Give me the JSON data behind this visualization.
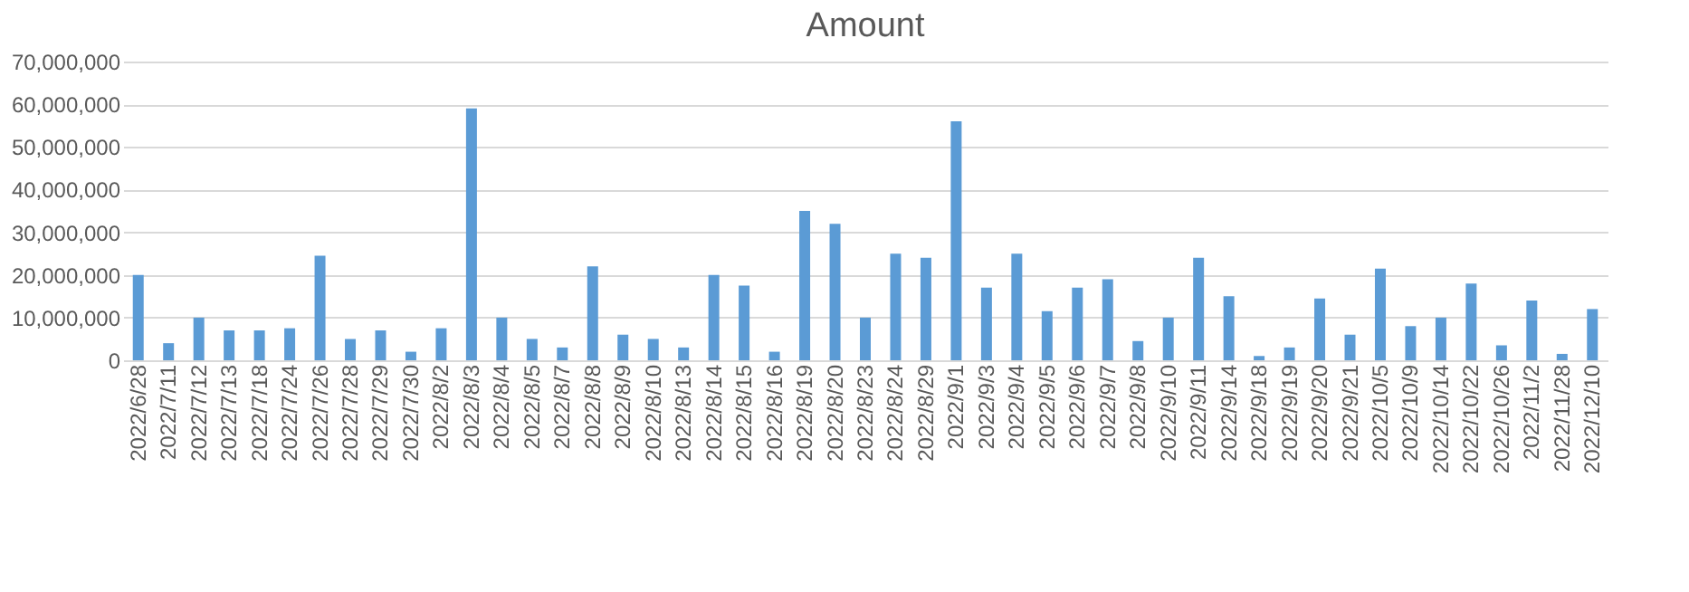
{
  "chart_data": {
    "type": "bar",
    "title": "Amount",
    "categories": [
      "2022/6/28",
      "2022/7/11",
      "2022/7/12",
      "2022/7/13",
      "2022/7/18",
      "2022/7/24",
      "2022/7/26",
      "2022/7/28",
      "2022/7/29",
      "2022/7/30",
      "2022/8/2",
      "2022/8/3",
      "2022/8/4",
      "2022/8/5",
      "2022/8/7",
      "2022/8/8",
      "2022/8/9",
      "2022/8/10",
      "2022/8/13",
      "2022/8/14",
      "2022/8/15",
      "2022/8/16",
      "2022/8/19",
      "2022/8/20",
      "2022/8/23",
      "2022/8/24",
      "2022/8/29",
      "2022/9/1",
      "2022/9/3",
      "2022/9/4",
      "2022/9/5",
      "2022/9/6",
      "2022/9/7",
      "2022/9/8",
      "2022/9/10",
      "2022/9/11",
      "2022/9/14",
      "2022/9/18",
      "2022/9/19",
      "2022/9/20",
      "2022/9/21",
      "2022/10/5",
      "2022/10/9",
      "2022/10/14",
      "2022/10/22",
      "2022/10/26",
      "2022/11/2",
      "2022/11/28",
      "2022/12/10"
    ],
    "values": [
      20000000,
      4000000,
      10000000,
      7000000,
      7000000,
      7500000,
      24500000,
      5000000,
      7000000,
      2000000,
      7500000,
      59000000,
      10000000,
      5000000,
      3000000,
      22000000,
      6000000,
      5000000,
      3000000,
      20000000,
      17500000,
      2000000,
      35000000,
      32000000,
      10000000,
      25000000,
      24000000,
      56000000,
      17000000,
      25000000,
      11500000,
      17000000,
      19000000,
      4500000,
      10000000,
      24000000,
      15000000,
      1000000,
      3000000,
      14500000,
      6000000,
      21500000,
      8000000,
      10000000,
      18000000,
      3500000,
      14000000,
      1500000,
      12000000
    ],
    "color": "#5b9bd5",
    "ylim": [
      0,
      70000000
    ],
    "yticks": [
      0,
      {
        "value": 10000000,
        "label": "10,000,000"
      },
      {
        "value": 20000000,
        "label": "20,000,000"
      },
      {
        "value": 30000000,
        "label": "30,000,000"
      },
      {
        "value": 40000000,
        "label": "40,000,000"
      },
      {
        "value": 50000000,
        "label": "50,000,000"
      },
      {
        "value": 60000000,
        "label": "60,000,000"
      },
      {
        "value": 70000000,
        "label": "70,000,000"
      }
    ],
    "grid": "y"
  }
}
